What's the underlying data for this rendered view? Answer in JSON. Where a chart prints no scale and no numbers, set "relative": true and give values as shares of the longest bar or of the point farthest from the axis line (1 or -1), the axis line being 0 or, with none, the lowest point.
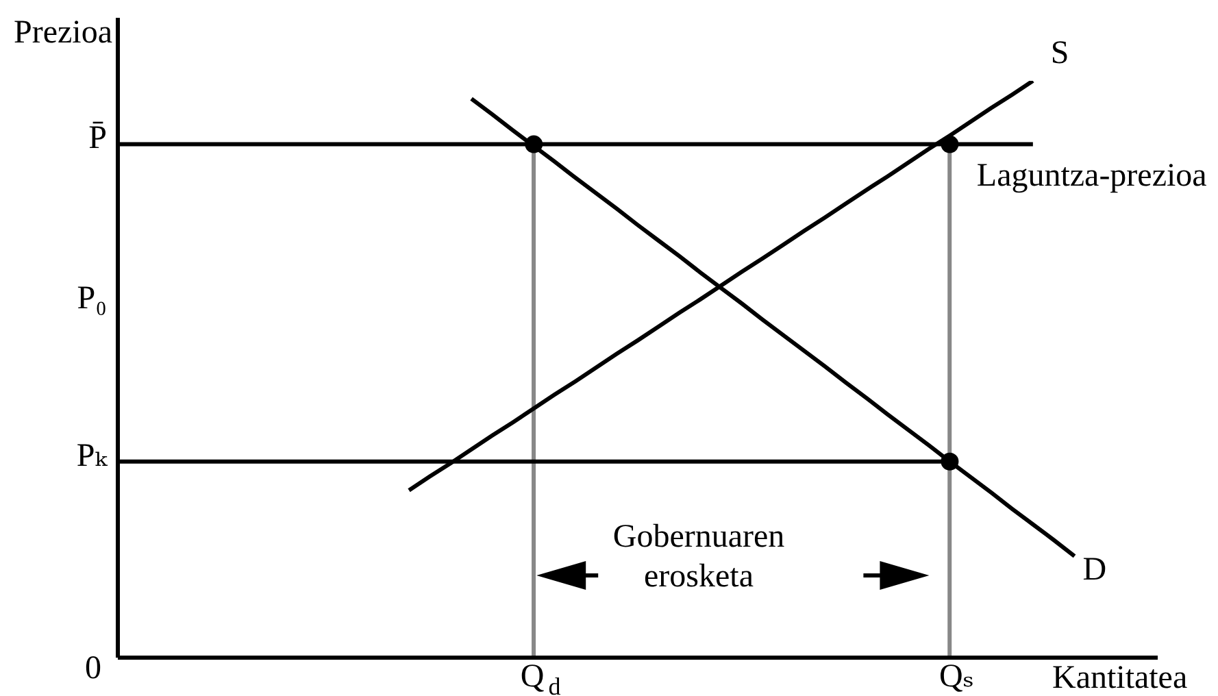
{
  "chart_data": {
    "type": "line",
    "relative": true,
    "xlabel": "Kantitatea",
    "ylabel": "Prezioa",
    "categories": [
      null,
      null,
      null,
      null,
      null,
      null,
      null,
      null,
      null,
      null,
      null,
      null,
      null,
      null,
      null,
      null,
      null,
      null,
      null,
      null,
      "Q$_{d}$",
      null,
      null,
      null,
      null,
      null,
      null,
      null,
      null,
      null,
      null,
      null,
      null,
      null,
      null,
      null,
      null,
      null,
      null,
      null,
      "Qₛ",
      null,
      null,
      null,
      null,
      null,
      null,
      null,
      null,
      null,
      null
    ],
    "annotations": [
      "Gobernuaren erosketa",
      "0",
      "P̄",
      "P₀",
      "Pₖ"
    ],
    "series": [
      {
        "name": "S",
        "color": "#000000",
        "values": [
          null,
          null,
          null,
          null,
          null,
          null,
          null,
          null,
          null,
          null,
          null,
          null,
          null,
          null,
          0.29,
          0.314,
          0.337,
          0.361,
          0.385,
          0.408,
          0.432,
          0.456,
          0.479,
          0.503,
          0.527,
          0.55,
          0.574,
          0.598,
          0.621,
          0.645,
          0.669,
          0.692,
          0.716,
          0.74,
          0.763,
          0.787,
          0.811,
          0.834,
          0.858,
          0.882,
          0.905,
          0.929,
          0.953,
          0.976,
          1,
          null,
          null,
          null,
          null,
          null,
          null
        ]
      },
      {
        "name": "D",
        "color": "#000000",
        "values": [
          null,
          null,
          null,
          null,
          null,
          null,
          null,
          null,
          null,
          null,
          null,
          null,
          null,
          null,
          null,
          null,
          null,
          0.969,
          0.942,
          0.914,
          0.887,
          0.86,
          0.832,
          0.805,
          0.778,
          0.75,
          0.723,
          0.696,
          0.668,
          0.641,
          0.614,
          0.586,
          0.559,
          0.532,
          0.505,
          0.477,
          0.45,
          0.422,
          0.395,
          0.368,
          0.34,
          0.313,
          0.286,
          0.258,
          0.231,
          0.204,
          0.176,
          null,
          null,
          null,
          null
        ]
      },
      {
        "name": "Laguntza-prezioa",
        "color": "#000000",
        "values": [
          0.89,
          0.89,
          0.89,
          0.89,
          0.89,
          0.89,
          0.89,
          0.89,
          0.89,
          0.89,
          0.89,
          0.89,
          0.89,
          0.89,
          0.89,
          0.89,
          0.89,
          0.89,
          0.89,
          0.89,
          0.89,
          0.89,
          0.89,
          0.89,
          0.89,
          0.89,
          0.89,
          0.89,
          0.89,
          0.89,
          0.89,
          0.89,
          0.89,
          0.89,
          0.89,
          0.89,
          0.89,
          0.89,
          0.89,
          0.89,
          0.89,
          0.89,
          0.89,
          0.89,
          0.89,
          null,
          null,
          null,
          null,
          null,
          null
        ]
      },
      {
        "color": "#000000",
        "values": [
          0.34,
          0.34,
          0.34,
          0.34,
          0.34,
          0.34,
          0.34,
          0.34,
          0.34,
          0.34,
          0.34,
          0.34,
          0.34,
          0.34,
          0.34,
          0.34,
          0.34,
          0.34,
          0.34,
          0.34,
          0.34,
          0.34,
          0.34,
          0.34,
          0.34,
          0.34,
          0.34,
          0.34,
          0.34,
          0.34,
          0.34,
          0.34,
          0.34,
          0.34,
          0.34,
          0.34,
          0.34,
          0.34,
          0.34,
          0.34,
          0.34,
          null,
          null,
          null,
          null,
          null,
          null,
          null,
          null,
          null,
          null
        ]
      },
      {
        "type": "scatter",
        "marker": "circle",
        "color": "#000000",
        "values": [
          null,
          null,
          null,
          null,
          null,
          null,
          null,
          null,
          null,
          null,
          null,
          null,
          null,
          null,
          null,
          null,
          null,
          null,
          null,
          null,
          0.89,
          null,
          null,
          null,
          null,
          null,
          null,
          null,
          null,
          null,
          null,
          null,
          null,
          null,
          null,
          null,
          null,
          null,
          null,
          null,
          0.89,
          null,
          null,
          null,
          null,
          null,
          null,
          null,
          null,
          null,
          null
        ]
      },
      {
        "type": "scatter",
        "marker": "circle",
        "color": "#000000",
        "values": [
          null,
          null,
          null,
          null,
          null,
          null,
          null,
          null,
          null,
          null,
          null,
          null,
          null,
          null,
          null,
          null,
          null,
          null,
          null,
          null,
          null,
          null,
          null,
          null,
          null,
          null,
          null,
          null,
          null,
          null,
          null,
          null,
          null,
          null,
          null,
          null,
          null,
          null,
          null,
          null,
          0.34,
          null,
          null,
          null,
          null,
          null,
          null,
          null,
          null,
          null,
          null
        ]
      },
      {
        "type": "bar",
        "color": "#888888",
        "values": [
          null,
          null,
          null,
          null,
          null,
          null,
          null,
          null,
          null,
          null,
          null,
          null,
          null,
          null,
          null,
          null,
          null,
          null,
          null,
          null,
          0.88,
          null,
          null,
          null,
          null,
          null,
          null,
          null,
          null,
          null,
          null,
          null,
          null,
          null,
          null,
          null,
          null,
          null,
          null,
          null,
          0.88,
          null,
          null,
          null,
          null,
          null,
          null,
          null,
          null,
          null,
          null
        ]
      }
    ]
  }
}
